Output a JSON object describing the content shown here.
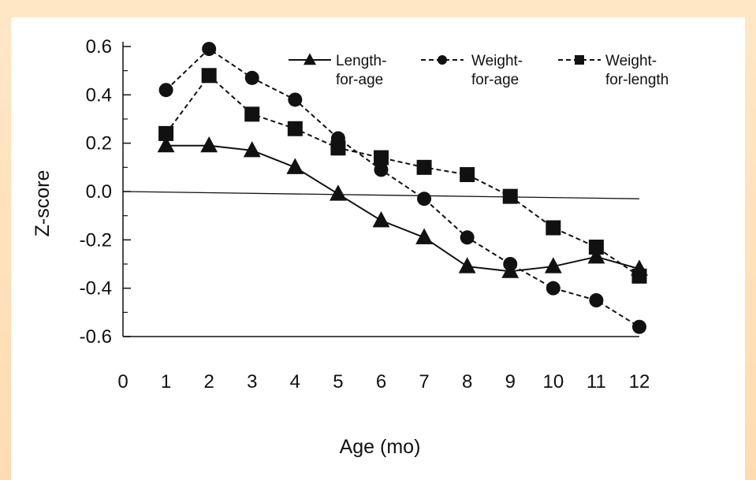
{
  "chart_data": {
    "type": "line",
    "title": "",
    "xlabel": "Age (mo)",
    "ylabel": "Z-score",
    "xlim": [
      0,
      12
    ],
    "ylim": [
      -0.6,
      0.6
    ],
    "x_ticks": [
      "0",
      "1",
      "2",
      "3",
      "4",
      "5",
      "6",
      "7",
      "8",
      "9",
      "10",
      "11",
      "12"
    ],
    "y_ticks": [
      "0.6",
      "0.4",
      "0.2",
      "0.0",
      "-0.2",
      "-0.4",
      "-0.6"
    ],
    "y_tick_values": [
      0.6,
      0.4,
      0.2,
      0.0,
      -0.2,
      -0.4,
      -0.6
    ],
    "reference_line": {
      "x": [
        0,
        12
      ],
      "y": [
        0.0,
        -0.03
      ]
    },
    "legend_position": "top-right",
    "x": [
      1,
      2,
      3,
      4,
      5,
      6,
      7,
      8,
      9,
      10,
      11,
      12
    ],
    "series": [
      {
        "name_lines": [
          "Length-",
          "for-age"
        ],
        "marker": "triangle",
        "line": "solid",
        "values": [
          0.19,
          0.19,
          0.17,
          0.1,
          -0.01,
          -0.12,
          -0.19,
          -0.31,
          -0.33,
          -0.31,
          -0.27,
          -0.32
        ]
      },
      {
        "name_lines": [
          "Weight-",
          "for-age"
        ],
        "marker": "circle",
        "line": "dashed",
        "values": [
          0.42,
          0.59,
          0.47,
          0.38,
          0.22,
          0.09,
          -0.03,
          -0.19,
          -0.3,
          -0.4,
          -0.45,
          -0.56
        ]
      },
      {
        "name_lines": [
          "Weight-",
          "for-length"
        ],
        "marker": "square",
        "line": "dashed",
        "values": [
          0.24,
          0.48,
          0.32,
          0.26,
          0.18,
          0.14,
          0.1,
          0.07,
          -0.02,
          -0.15,
          -0.23,
          -0.35
        ]
      }
    ],
    "colors": {
      "background": "#ffe3bd",
      "panel": "#ffffff",
      "ink": "#111111"
    }
  }
}
